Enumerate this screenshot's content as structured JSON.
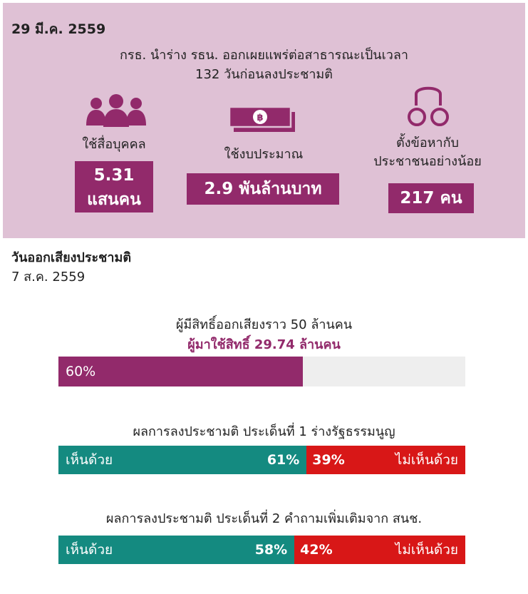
{
  "header": {
    "date": "29 มี.ค. 2559",
    "line1": "กรธ. นำร่าง รธน. ออกเผยแพร่ต่อสาธารณะเป็นเวลา",
    "line2": "132 วันก่อนลงประชามติ"
  },
  "stats": [
    {
      "icon": "people-group-icon",
      "label": [
        "ใช้สื่อบุคคล"
      ],
      "value": [
        "5.31",
        "แสนคน"
      ]
    },
    {
      "icon": "banknote-icon",
      "label": [
        "ใช้งบประมาณ"
      ],
      "value": [
        "2.9 พันล้านบาท"
      ]
    },
    {
      "icon": "handcuffs-icon",
      "label": [
        "ตั้งข้อหากับ",
        "ประชาชนอย่างน้อย"
      ],
      "value": [
        "217 คน"
      ]
    }
  ],
  "vote": {
    "date_title": "วันออกเสียงประชามติ",
    "date": "7 ส.ค. 2559",
    "eligible": "ผู้มีสิทธิ์ออกเสียงราว 50 ล้านคน",
    "turnout": "ผู้มาใช้สิทธิ์ 29.74 ล้านคน"
  },
  "chart_data": [
    {
      "type": "bar",
      "title": "",
      "categories": [
        "ผู้มาใช้สิทธิ์"
      ],
      "values": [
        60
      ],
      "value_label": "60%",
      "ylim": [
        0,
        100
      ]
    },
    {
      "type": "bar",
      "title": "ผลการลงประชามติ ประเด็นที่ 1 ร่างรัฐธรรมนูญ",
      "series": [
        {
          "name": "เห็นด้วย",
          "values": [
            61
          ],
          "label": "61%"
        },
        {
          "name": "ไม่เห็นด้วย",
          "values": [
            39
          ],
          "label": "39%"
        }
      ],
      "ylim": [
        0,
        100
      ]
    },
    {
      "type": "bar",
      "title": "ผลการลงประชามติ ประเด็นที่ 2 คำถามเพิ่มเติมจาก สนช.",
      "series": [
        {
          "name": "เห็นด้วย",
          "values": [
            58
          ],
          "label": "58%"
        },
        {
          "name": "ไม่เห็นด้วย",
          "values": [
            42
          ],
          "label": "42%"
        }
      ],
      "ylim": [
        0,
        100
      ]
    }
  ],
  "colors": {
    "accent": "#922a6b",
    "agree": "#148a80",
    "disagree": "#d81717",
    "panel": "#dfc1d5",
    "track": "#eeeeee"
  }
}
